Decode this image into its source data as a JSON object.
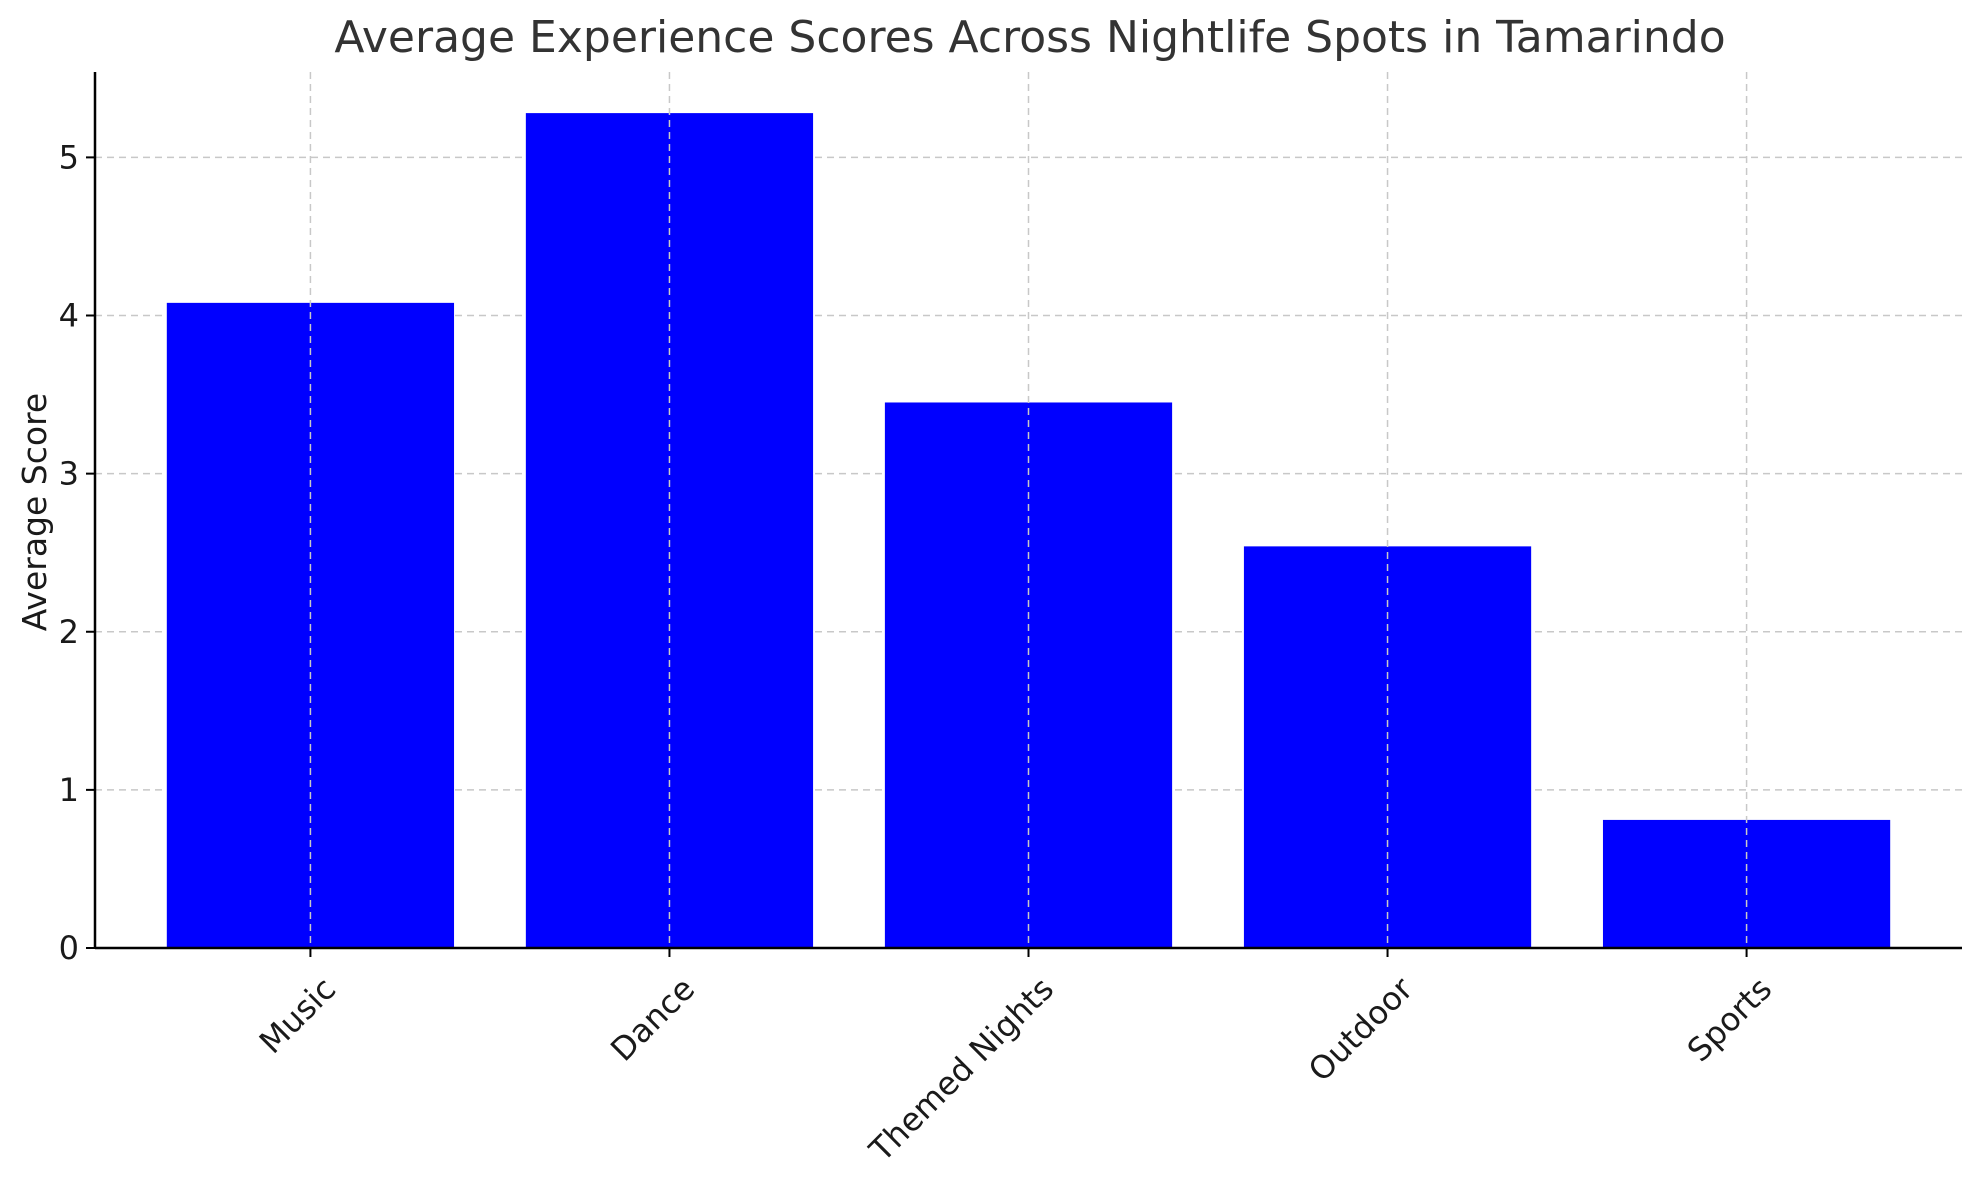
{
  "chart_data": {
    "type": "bar",
    "title": "Average Experience Scores Across Nightlife Spots in Tamarindo",
    "xlabel": "",
    "ylabel": "Average Score",
    "categories": [
      "Music",
      "Dance",
      "Themed Nights",
      "Outdoor",
      "Sports"
    ],
    "values": [
      4.08,
      5.28,
      3.45,
      2.54,
      0.81
    ],
    "yticks": [
      0,
      1,
      2,
      3,
      4,
      5
    ],
    "ytick_labels": [
      "0",
      "1",
      "2",
      "3",
      "4",
      "5"
    ],
    "ylim": [
      0,
      5.54
    ],
    "grid": true,
    "legend": false,
    "bar_color": "#0000ff",
    "xtick_rotation_deg": 45
  }
}
